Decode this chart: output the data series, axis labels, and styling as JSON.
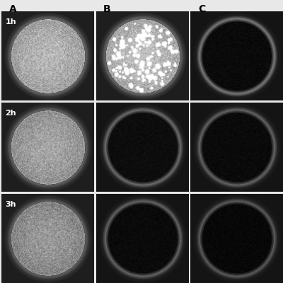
{
  "figure_width": 4.0,
  "figure_height": 4.0,
  "dpi": 100,
  "col_labels": [
    "A",
    "B",
    "C"
  ],
  "row_labels": [
    "1h",
    "2h",
    "3h"
  ],
  "background_color": "#e8e8e8",
  "dishes": [
    {
      "row": 0,
      "col": 0,
      "panel_bg": "#1a1a1a",
      "inner_brightness": 0.72,
      "rim_brightness": 0.88,
      "outer_rim_brightness": 0.55,
      "has_colonies": false,
      "colony_density": 0,
      "dark_dish": false
    },
    {
      "row": 0,
      "col": 1,
      "panel_bg": "#2a2a20",
      "inner_brightness": 0.75,
      "rim_brightness": 0.9,
      "outer_rim_brightness": 0.6,
      "has_colonies": true,
      "colony_density": 150,
      "dark_dish": false
    },
    {
      "row": 0,
      "col": 2,
      "panel_bg": "#050505",
      "inner_brightness": 0.08,
      "rim_brightness": 0.65,
      "outer_rim_brightness": 0.15,
      "has_colonies": false,
      "colony_density": 0,
      "dark_dish": true
    },
    {
      "row": 1,
      "col": 0,
      "panel_bg": "#0a0a0a",
      "inner_brightness": 0.65,
      "rim_brightness": 0.85,
      "outer_rim_brightness": 0.5,
      "has_colonies": false,
      "colony_density": 0,
      "dark_dish": false
    },
    {
      "row": 1,
      "col": 1,
      "panel_bg": "#050505",
      "inner_brightness": 0.1,
      "rim_brightness": 0.55,
      "outer_rim_brightness": 0.2,
      "has_colonies": false,
      "colony_density": 0,
      "dark_dish": true
    },
    {
      "row": 1,
      "col": 2,
      "panel_bg": "#050505",
      "inner_brightness": 0.08,
      "rim_brightness": 0.5,
      "outer_rim_brightness": 0.18,
      "has_colonies": false,
      "colony_density": 0,
      "dark_dish": true
    },
    {
      "row": 2,
      "col": 0,
      "panel_bg": "#080808",
      "inner_brightness": 0.6,
      "rim_brightness": 0.82,
      "outer_rim_brightness": 0.45,
      "has_colonies": false,
      "colony_density": 0,
      "dark_dish": false
    },
    {
      "row": 2,
      "col": 1,
      "panel_bg": "#050505",
      "inner_brightness": 0.08,
      "rim_brightness": 0.5,
      "outer_rim_brightness": 0.18,
      "has_colonies": false,
      "colony_density": 0,
      "dark_dish": true
    },
    {
      "row": 2,
      "col": 2,
      "panel_bg": "#050505",
      "inner_brightness": 0.06,
      "rim_brightness": 0.45,
      "outer_rim_brightness": 0.15,
      "has_colonies": false,
      "colony_density": 0,
      "dark_dish": true
    }
  ],
  "grid_rows": 3,
  "grid_cols": 3,
  "col_label_fontsize": 10,
  "row_label_fontsize": 8,
  "noise_sigma": 0.08
}
